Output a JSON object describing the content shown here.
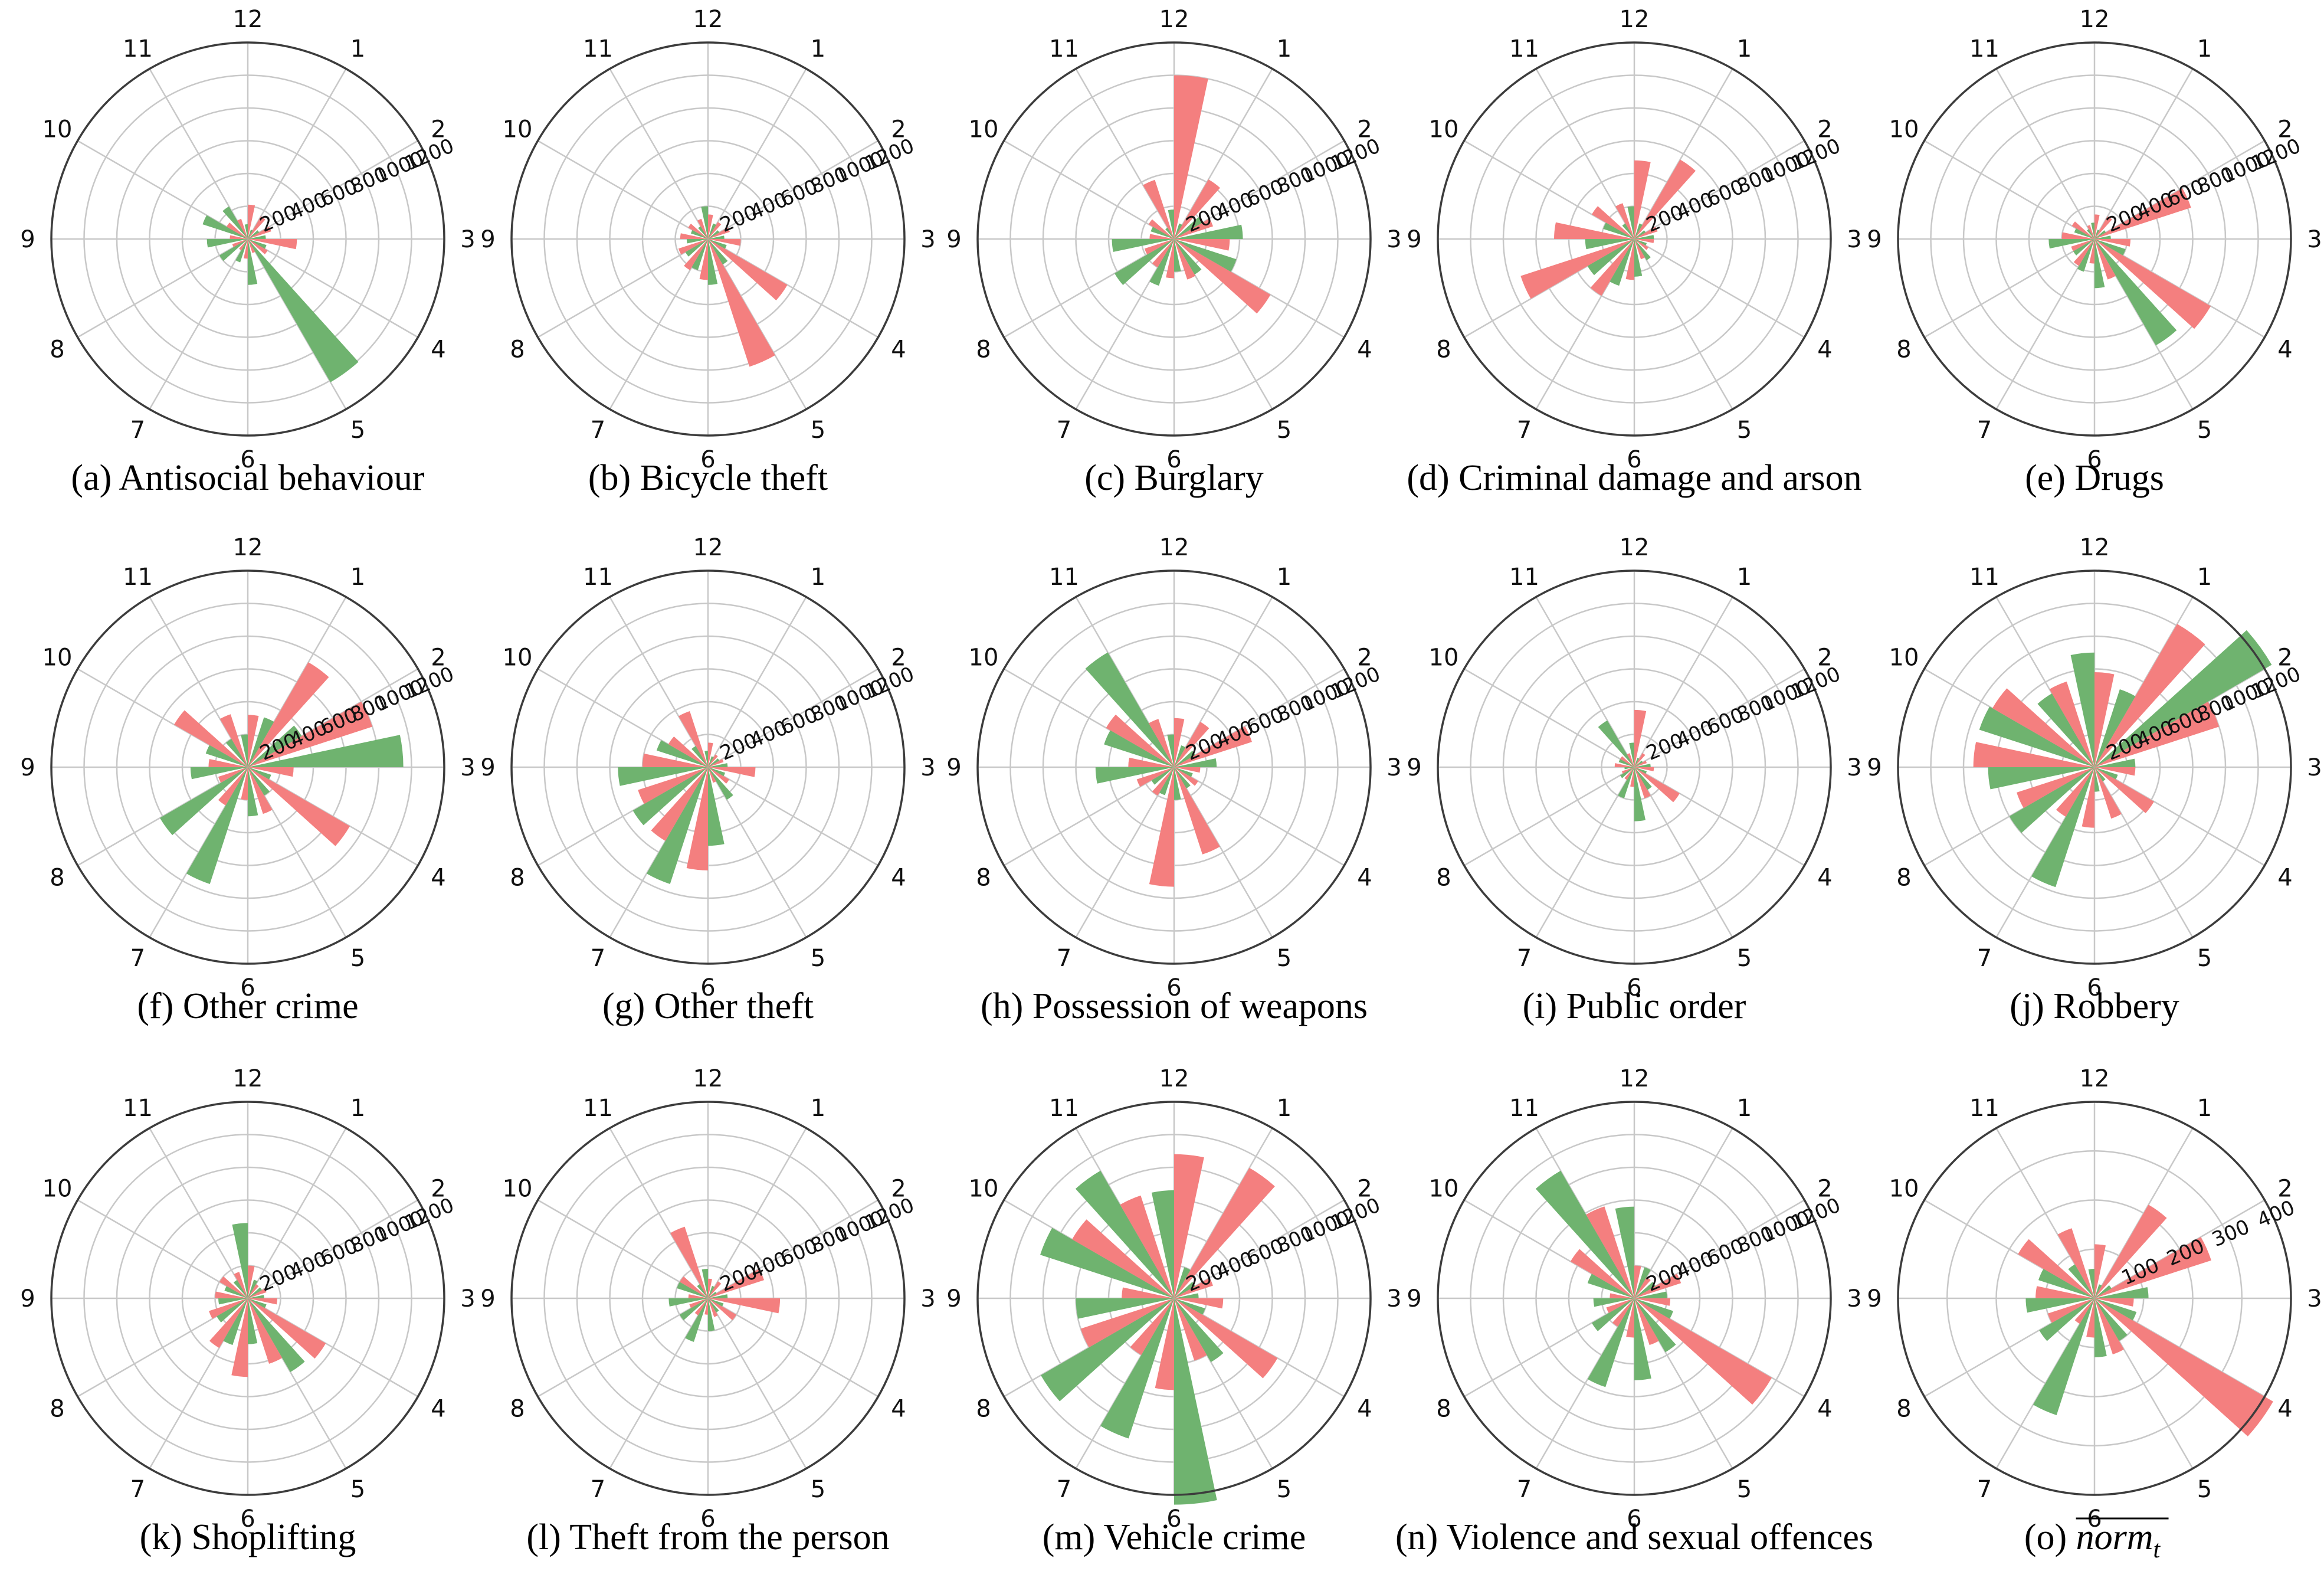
{
  "chart_data": {
    "type": "polar-bar",
    "angular_labels": [
      "12",
      "1",
      "2",
      "3",
      "4",
      "5",
      "6",
      "7",
      "8",
      "9",
      "10",
      "11"
    ],
    "colors": {
      "red": "#f47f7f",
      "green": "#6fb36f"
    },
    "panels": [
      {
        "id": "a",
        "caption": "(a) Antisocial behaviour",
        "rlim": [
          0,
          1200
        ],
        "rticks": [
          "200",
          "400",
          "600",
          "800",
          "1000",
          "1200"
        ],
        "red": [
          210,
          160,
          150,
          300,
          140,
          90,
          120,
          80,
          100,
          110,
          150,
          130
        ],
        "green": [
          90,
          60,
          80,
          110,
          120,
          1010,
          280,
          150,
          200,
          250,
          290,
          230
        ]
      },
      {
        "id": "b",
        "caption": "(b) Bicycle theft",
        "rlim": [
          0,
          1200
        ],
        "rticks": [
          "200",
          "400",
          "600",
          "800",
          "1000",
          "1200"
        ],
        "red": [
          150,
          120,
          140,
          200,
          560,
          820,
          250,
          220,
          190,
          170,
          140,
          130
        ],
        "green": [
          200,
          100,
          80,
          100,
          120,
          180,
          280,
          200,
          160,
          130,
          110,
          90
        ]
      },
      {
        "id": "c",
        "caption": "(c) Burglary",
        "rlim": [
          0,
          1200
        ],
        "rticks": [
          "200",
          "400",
          "600",
          "800",
          "1000",
          "1200"
        ],
        "red": [
          1000,
          420,
          250,
          340,
          680,
          260,
          240,
          200,
          190,
          150,
          180,
          380
        ],
        "green": [
          180,
          100,
          200,
          420,
          400,
          250,
          200,
          300,
          420,
          380,
          150,
          80
        ]
      },
      {
        "id": "d",
        "caption": "(d) Criminal damage and arson",
        "rlim": [
          0,
          1200
        ],
        "rticks": [
          "200",
          "400",
          "600",
          "800",
          "1000",
          "1200"
        ],
        "red": [
          480,
          560,
          150,
          120,
          100,
          130,
          250,
          400,
          730,
          490,
          300,
          230
        ],
        "green": [
          200,
          100,
          80,
          120,
          80,
          150,
          230,
          300,
          330,
          300,
          200,
          110
        ]
      },
      {
        "id": "e",
        "caption": "(e) Drugs",
        "rlim": [
          0,
          1200
        ],
        "rticks": [
          "200",
          "400",
          "600",
          "800",
          "1000",
          "1200"
        ],
        "red": [
          150,
          160,
          620,
          220,
          820,
          260,
          150,
          190,
          150,
          200,
          160,
          90
        ],
        "green": [
          100,
          60,
          80,
          100,
          200,
          750,
          300,
          210,
          150,
          280,
          130,
          70
        ]
      },
      {
        "id": "f",
        "caption": "(f) Other crime",
        "rlim": [
          0,
          1200
        ],
        "rticks": [
          "200",
          "400",
          "600",
          "800",
          "1000",
          "1200"
        ],
        "red": [
          320,
          740,
          800,
          280,
          720,
          300,
          200,
          270,
          190,
          240,
          520,
          340
        ],
        "green": [
          200,
          320,
          380,
          950,
          150,
          200,
          300,
          750,
          620,
          350,
          270,
          200
        ]
      },
      {
        "id": "g",
        "caption": "(g) Other theft",
        "rlim": [
          0,
          1200
        ],
        "rticks": [
          "200",
          "400",
          "600",
          "800",
          "1000",
          "1200"
        ],
        "red": [
          150,
          90,
          100,
          290,
          150,
          100,
          630,
          520,
          450,
          400,
          280,
          360
        ],
        "green": [
          100,
          70,
          80,
          120,
          110,
          230,
          480,
          750,
          530,
          550,
          330,
          150
        ]
      },
      {
        "id": "h",
        "caption": "(h) Possession of weapons",
        "rlim": [
          0,
          1200
        ],
        "rticks": [
          "200",
          "400",
          "600",
          "800",
          "1000",
          "1200"
        ],
        "red": [
          300,
          320,
          500,
          160,
          170,
          560,
          730,
          200,
          240,
          280,
          480,
          310
        ],
        "green": [
          200,
          140,
          150,
          260,
          120,
          150,
          200,
          180,
          160,
          480,
          450,
          810
        ]
      },
      {
        "id": "i",
        "caption": "(i) Public order",
        "rlim": [
          0,
          1200
        ],
        "rticks": [
          "200",
          "400",
          "600",
          "800",
          "1000",
          "1200"
        ],
        "red": [
          350,
          100,
          80,
          120,
          320,
          200,
          120,
          90,
          80,
          120,
          100,
          90
        ],
        "green": [
          150,
          60,
          60,
          100,
          80,
          160,
          330,
          200,
          100,
          60,
          100,
          330
        ]
      },
      {
        "id": "j",
        "caption": "(j) Robbery",
        "rlim": [
          0,
          1200
        ],
        "rticks": [
          "200",
          "400",
          "600",
          "800",
          "1000",
          "1200"
        ],
        "red": [
          580,
          1010,
          800,
          250,
          420,
          330,
          370,
          350,
          500,
          740,
          720,
          550
        ],
        "green": [
          700,
          500,
          1250,
          250,
          150,
          100,
          150,
          770,
          600,
          650,
          740,
          520
        ]
      },
      {
        "id": "k",
        "caption": "(k) Shoplifting",
        "rlim": [
          0,
          1200
        ],
        "rticks": [
          "200",
          "400",
          "600",
          "800",
          "1000",
          "1200"
        ],
        "red": [
          200,
          100,
          120,
          180,
          550,
          420,
          480,
          350,
          250,
          200,
          200,
          170
        ],
        "green": [
          460,
          120,
          100,
          100,
          120,
          520,
          280,
          300,
          220,
          180,
          150,
          130
        ]
      },
      {
        "id": "l",
        "caption": "(l) Theft from the person",
        "rlim": [
          0,
          1200
        ],
        "rticks": [
          "200",
          "400",
          "600",
          "800",
          "1000",
          "1200"
        ],
        "red": [
          120,
          120,
          360,
          440,
          200,
          120,
          100,
          120,
          120,
          120,
          200,
          460
        ],
        "green": [
          180,
          80,
          60,
          120,
          100,
          100,
          200,
          280,
          200,
          240,
          200,
          100
        ]
      },
      {
        "id": "m",
        "caption": "(m) Vehicle crime",
        "rlim": [
          0,
          1200
        ],
        "rticks": [
          "200",
          "400",
          "600",
          "800",
          "1000",
          "1200"
        ],
        "red": [
          880,
          920,
          250,
          300,
          730,
          400,
          560,
          400,
          600,
          320,
          720,
          660
        ],
        "green": [
          660,
          200,
          150,
          150,
          200,
          450,
          1260,
          900,
          940,
          600,
          860,
          900
        ]
      },
      {
        "id": "n",
        "caption": "(n) Violence and sexual offences",
        "rlim": [
          0,
          1200
        ],
        "rticks": [
          "200",
          "400",
          "600",
          "800",
          "1000",
          "1200"
        ],
        "red": [
          200,
          150,
          300,
          220,
          970,
          300,
          240,
          200,
          180,
          150,
          450,
          590
        ],
        "green": [
          560,
          200,
          150,
          200,
          250,
          380,
          500,
          570,
          300,
          250,
          300,
          900
        ]
      },
      {
        "id": "o",
        "caption": "(o) norm_t",
        "rlim": [
          0,
          400
        ],
        "rticks": [
          "100",
          "200",
          "300",
          "400"
        ],
        "red": [
          110,
          220,
          250,
          80,
          420,
          120,
          80,
          60,
          100,
          120,
          180,
          150
        ],
        "green": [
          60,
          30,
          40,
          110,
          90,
          100,
          120,
          250,
          130,
          140,
          120,
          80
        ]
      }
    ]
  },
  "caption_o": {
    "prefix": "(o) ",
    "symbol": "norm",
    "subscript": "t"
  }
}
